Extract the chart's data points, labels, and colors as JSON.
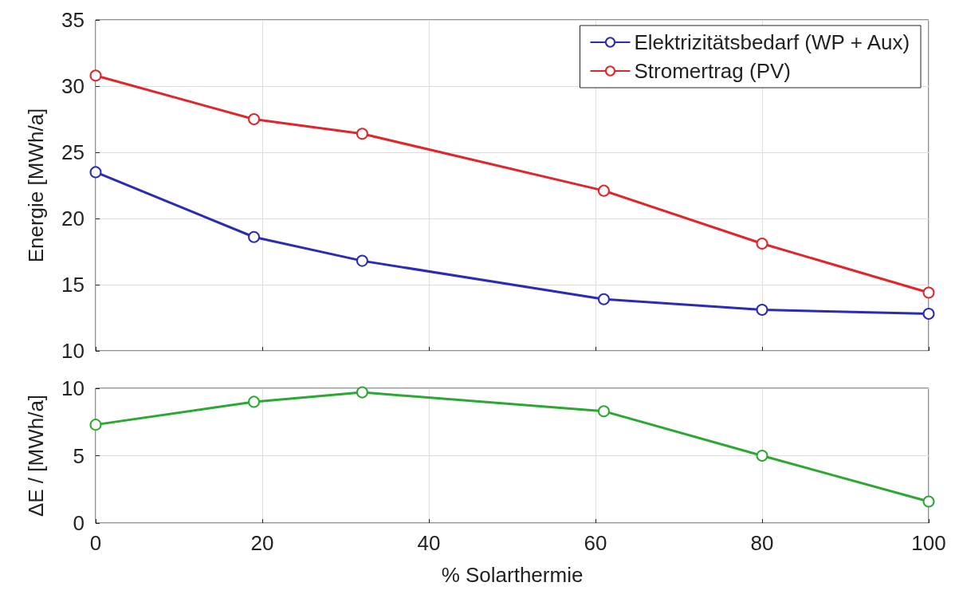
{
  "chart_data": [
    {
      "type": "line",
      "ylabel": "Energie [MWh/a]",
      "x": [
        0,
        19,
        32,
        61,
        80,
        100
      ],
      "xlim": [
        0,
        100
      ],
      "xticks": [
        0,
        20,
        40,
        60,
        80,
        100
      ],
      "ylim": [
        10,
        35
      ],
      "yticks": [
        10,
        15,
        20,
        25,
        30,
        35
      ],
      "grid": true,
      "legend": "top right",
      "marker": "circle",
      "line_style": "solid",
      "tick_labels": "y",
      "series": [
        {
          "name": "Elektrizitätsbedarf (WP + Aux)",
          "color": "#2b2bb8",
          "values": [
            23.5,
            18.6,
            16.8,
            13.9,
            13.1,
            12.8
          ]
        },
        {
          "name": "Stromertrag (PV)",
          "color": "#e0262b",
          "values": [
            30.8,
            27.5,
            26.4,
            22.1,
            18.1,
            14.4
          ]
        }
      ]
    },
    {
      "type": "line",
      "xlabel": "% Solarthermie",
      "ylabel": "ΔE / [MWh/a]",
      "x": [
        0,
        19,
        32,
        61,
        80,
        100
      ],
      "xlim": [
        0,
        100
      ],
      "xticks": [
        0,
        20,
        40,
        60,
        80,
        100
      ],
      "ylim": [
        0,
        10
      ],
      "yticks": [
        0,
        5,
        10
      ],
      "grid": true,
      "marker": "circle",
      "line_style": "solid",
      "series": [
        {
          "color": "#2aa832",
          "values": [
            7.3,
            9.0,
            9.7,
            8.3,
            5.0,
            1.6
          ]
        }
      ]
    }
  ]
}
